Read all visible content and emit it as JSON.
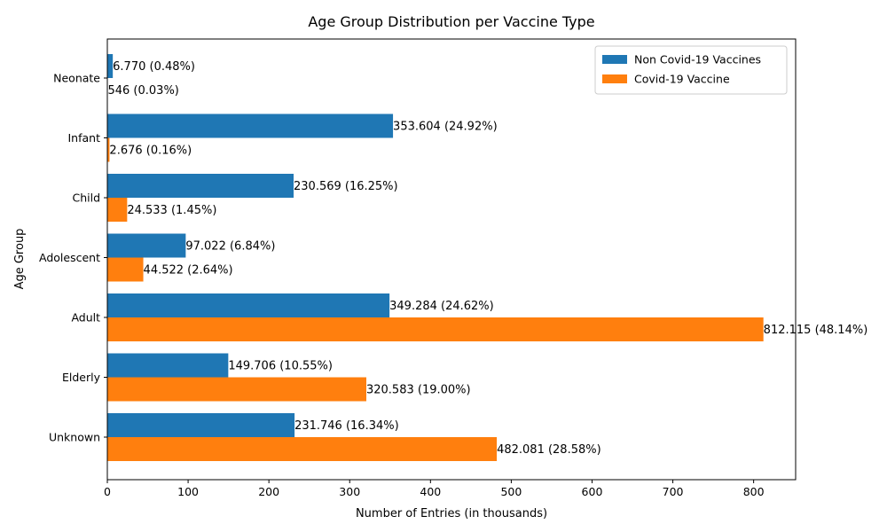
{
  "chart_data": {
    "type": "bar",
    "orientation": "horizontal",
    "title": "Age Group Distribution per Vaccine Type",
    "xlabel": "Number of Entries (in thousands)",
    "ylabel": "Age Group",
    "xlim": [
      0,
      852
    ],
    "xticks": [
      0,
      100,
      200,
      300,
      400,
      500,
      600,
      700,
      800
    ],
    "categories": [
      "Neonate",
      "Infant",
      "Child",
      "Adolescent",
      "Adult",
      "Elderly",
      "Unknown"
    ],
    "series": [
      {
        "name": "Non Covid-19 Vaccines",
        "color": "#1f77b4",
        "values": [
          6.77,
          353.604,
          230.569,
          97.022,
          349.284,
          149.706,
          231.746
        ],
        "labels": [
          "6.770 (0.48%)",
          "353.604 (24.92%)",
          "230.569 (16.25%)",
          "97.022 (6.84%)",
          "349.284 (24.62%)",
          "149.706 (10.55%)",
          "231.746 (16.34%)"
        ]
      },
      {
        "name": "Covid-19 Vaccine",
        "color": "#ff7f0e",
        "values": [
          0.546,
          2.676,
          24.533,
          44.522,
          812.115,
          320.583,
          482.081
        ],
        "labels": [
          "546 (0.03%)",
          "2.676 (0.16%)",
          "24.533 (1.45%)",
          "44.522 (2.64%)",
          "812.115 (48.14%)",
          "320.583 (19.00%)",
          "482.081 (28.58%)"
        ]
      }
    ],
    "grid": false,
    "legend_position": "top-right"
  }
}
